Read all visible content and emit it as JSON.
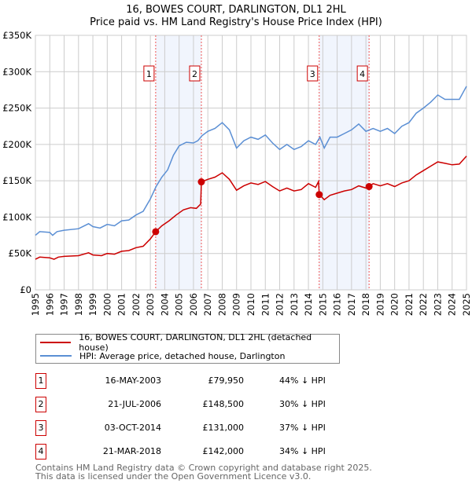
{
  "chart_data": {
    "type": "line",
    "title": "16, BOWES COURT, DARLINGTON, DL1 2HL",
    "subtitle": "Price paid vs. HM Land Registry's House Price Index (HPI)",
    "ylim": [
      0,
      350000
    ],
    "xlim": [
      1995,
      2025
    ],
    "yticks": [
      {
        "v": 0,
        "label": "£0"
      },
      {
        "v": 50000,
        "label": "£50K"
      },
      {
        "v": 100000,
        "label": "£100K"
      },
      {
        "v": 150000,
        "label": "£150K"
      },
      {
        "v": 200000,
        "label": "£200K"
      },
      {
        "v": 250000,
        "label": "£250K"
      },
      {
        "v": 300000,
        "label": "£300K"
      },
      {
        "v": 350000,
        "label": "£350K"
      }
    ],
    "xticks": [
      "1995",
      "1996",
      "1997",
      "1998",
      "1999",
      "2000",
      "2001",
      "2002",
      "2003",
      "2004",
      "2005",
      "2006",
      "2007",
      "2008",
      "2009",
      "2010",
      "2011",
      "2012",
      "2013",
      "2014",
      "2015",
      "2016",
      "2017",
      "2018",
      "2019",
      "2020",
      "2021",
      "2022",
      "2023",
      "2024",
      "2025"
    ],
    "grid": true,
    "shaded": [
      [
        2003.37,
        2006.55
      ],
      [
        2014.75,
        2018.22
      ]
    ],
    "series": [
      {
        "name": "16, BOWES COURT, DARLINGTON, DL1 2HL (detached house)",
        "color": "#cc0000",
        "x": [
          1995,
          1995.3,
          1996,
          1996.3,
          1996.6,
          1997,
          1998,
          1998.7,
          1999,
          1999.6,
          2000,
          2000.5,
          2001,
          2001.5,
          2002,
          2002.5,
          2003,
          2003.37,
          2003.8,
          2004.3,
          2004.8,
          2005.3,
          2005.8,
          2006.2,
          2006.5,
          2006.55,
          2007,
          2007.5,
          2008,
          2008.5,
          2009,
          2009.5,
          2010,
          2010.5,
          2011,
          2011.5,
          2012,
          2012.5,
          2013,
          2013.5,
          2014,
          2014.5,
          2014.7,
          2014.75,
          2015.1,
          2015.5,
          2016,
          2016.5,
          2017,
          2017.5,
          2018,
          2018.22,
          2018.5,
          2019,
          2019.5,
          2020,
          2020.5,
          2021,
          2021.5,
          2022,
          2022.5,
          2023,
          2023.5,
          2024,
          2024.5,
          2025
        ],
        "y": [
          42000,
          45000,
          44000,
          42000,
          45000,
          46000,
          47000,
          51000,
          48000,
          47000,
          50000,
          49000,
          53000,
          54000,
          58000,
          60000,
          70000,
          79950,
          88000,
          95000,
          103000,
          110000,
          113000,
          112000,
          118000,
          148500,
          152000,
          155000,
          161000,
          152000,
          137000,
          143000,
          147000,
          145000,
          149000,
          142000,
          136000,
          140000,
          136000,
          138000,
          146000,
          141000,
          149000,
          131000,
          124000,
          130000,
          133000,
          136000,
          138000,
          143000,
          140000,
          142000,
          146000,
          143000,
          146000,
          142000,
          147000,
          150000,
          158000,
          164000,
          170000,
          176000,
          174000,
          172000,
          173000,
          184000
        ]
      },
      {
        "name": "HPI: Average price, detached house, Darlington",
        "color": "#5b8fd4",
        "x": [
          1995,
          1995.3,
          1996,
          1996.2,
          1996.5,
          1997,
          1998,
          1998.7,
          1999,
          1999.5,
          2000,
          2000.5,
          2001,
          2001.5,
          2002,
          2002.5,
          2003,
          2003.4,
          2003.8,
          2004.2,
          2004.6,
          2005,
          2005.5,
          2006,
          2006.3,
          2006.6,
          2007,
          2007.5,
          2008,
          2008.5,
          2009,
          2009.5,
          2010,
          2010.5,
          2011,
          2011.5,
          2012,
          2012.5,
          2013,
          2013.5,
          2014,
          2014.5,
          2014.8,
          2015.1,
          2015.5,
          2016,
          2016.5,
          2017,
          2017.5,
          2018,
          2018.5,
          2019,
          2019.5,
          2020,
          2020.5,
          2021,
          2021.5,
          2022,
          2022.5,
          2023,
          2023.5,
          2024,
          2024.5,
          2025
        ],
        "y": [
          75000,
          80000,
          79000,
          75000,
          80000,
          82000,
          84000,
          91000,
          87000,
          85000,
          90000,
          88000,
          95000,
          96000,
          103000,
          108000,
          125000,
          142000,
          155000,
          165000,
          185000,
          198000,
          203000,
          202000,
          205000,
          212000,
          218000,
          222000,
          230000,
          220000,
          195000,
          205000,
          210000,
          207000,
          213000,
          202000,
          193000,
          200000,
          193000,
          197000,
          205000,
          200000,
          210000,
          195000,
          210000,
          210000,
          215000,
          220000,
          228000,
          218000,
          222000,
          218000,
          222000,
          215000,
          225000,
          230000,
          243000,
          250000,
          258000,
          268000,
          262000,
          262000,
          262000,
          280000
        ]
      }
    ],
    "sales": [
      {
        "n": "1",
        "date": "16-MAY-2003",
        "x": 2003.37,
        "price": "£79,950",
        "value": 79950,
        "hpi": "44% ↓ HPI"
      },
      {
        "n": "2",
        "date": "21-JUL-2006",
        "x": 2006.55,
        "price": "£148,500",
        "value": 148500,
        "hpi": "30% ↓ HPI"
      },
      {
        "n": "3",
        "date": "03-OCT-2014",
        "x": 2014.75,
        "price": "£131,000",
        "value": 131000,
        "hpi": "37% ↓ HPI"
      },
      {
        "n": "4",
        "date": "21-MAR-2018",
        "x": 2018.22,
        "price": "£142,000",
        "value": 142000,
        "hpi": "34% ↓ HPI"
      }
    ]
  },
  "footer": {
    "line1": "Contains HM Land Registry data © Crown copyright and database right 2025.",
    "line2": "This data is licensed under the Open Government Licence v3.0."
  }
}
